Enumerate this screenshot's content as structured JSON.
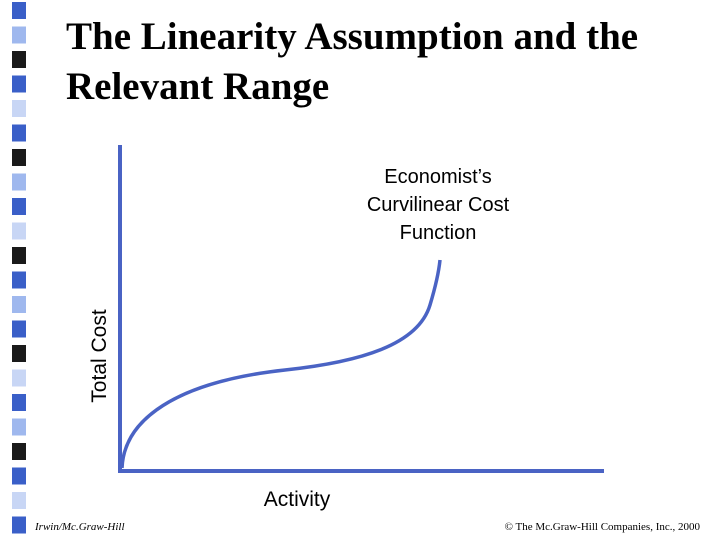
{
  "title_lines": [
    "The Linearity Assumption and the",
    "Relevant Range"
  ],
  "annotation_lines": [
    "Economist’s",
    "Curvilinear Cost",
    "Function"
  ],
  "y_axis_label": "Total Cost",
  "x_axis_label": "Activity",
  "footer": {
    "left": "Irwin/Mc.Graw-Hill",
    "right": "© The Mc.Graw-Hill Companies, Inc., 2000"
  }
}
